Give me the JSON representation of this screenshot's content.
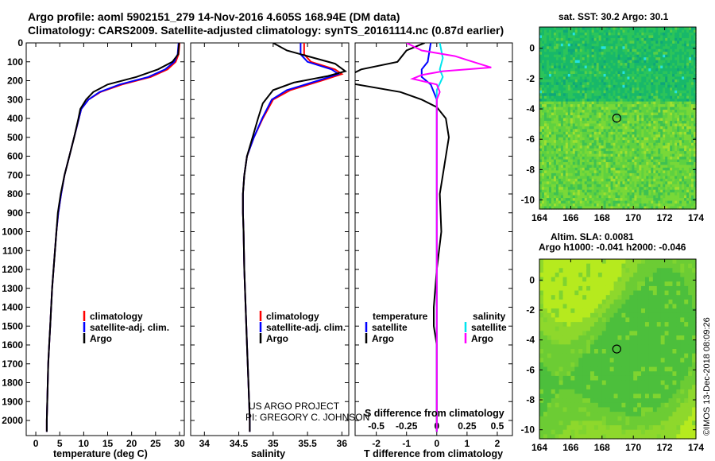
{
  "header": {
    "line1": "Argo profile: aoml 5902151_279 14-Nov-2016 4.605S 168.94E (DM data)",
    "line2": "Climatology: CARS2009. Satellite-adjusted climatology: synTS_20161114.nc (0.87d earlier)"
  },
  "colors": {
    "climatology": "#ff0000",
    "satellite": "#0000ff",
    "argo": "#000000",
    "sal_satellite": "#00e5ee",
    "sal_argo": "#ff00ff"
  },
  "chart_data": [
    {
      "type": "line",
      "id": "temperature",
      "xlabel": "temperature (deg C)",
      "xlim": [
        -2,
        31
      ],
      "ylim": [
        2080,
        0
      ],
      "xticks": [
        0,
        5,
        10,
        15,
        20,
        25,
        30
      ],
      "yticks": [
        0,
        100,
        200,
        300,
        400,
        500,
        600,
        700,
        800,
        900,
        1000,
        1100,
        1200,
        1300,
        1400,
        1500,
        1600,
        1700,
        1800,
        1900,
        2000
      ],
      "legend": [
        "climatology",
        "satellite-adj. clim.",
        "Argo"
      ],
      "series": [
        {
          "name": "climatology",
          "color": "#ff0000",
          "points": [
            [
              30.0,
              0
            ],
            [
              29.8,
              60
            ],
            [
              29.2,
              100
            ],
            [
              27.5,
              140
            ],
            [
              24.0,
              180
            ],
            [
              18.0,
              220
            ],
            [
              13.5,
              260
            ],
            [
              11.0,
              300
            ],
            [
              9.5,
              350
            ],
            [
              9.0,
              400
            ],
            [
              8.0,
              500
            ],
            [
              7.0,
              600
            ],
            [
              6.0,
              700
            ],
            [
              5.3,
              800
            ],
            [
              4.7,
              900
            ],
            [
              4.3,
              1000
            ],
            [
              4.0,
              1100
            ],
            [
              3.7,
              1200
            ],
            [
              3.4,
              1300
            ],
            [
              3.2,
              1400
            ],
            [
              3.0,
              1500
            ],
            [
              2.8,
              1600
            ],
            [
              2.6,
              1700
            ],
            [
              2.5,
              1800
            ],
            [
              2.4,
              1900
            ],
            [
              2.3,
              2000
            ],
            [
              2.3,
              2060
            ]
          ]
        },
        {
          "name": "satellite-adj. clim.",
          "color": "#0000ff",
          "points": [
            [
              29.8,
              0
            ],
            [
              29.6,
              60
            ],
            [
              28.9,
              100
            ],
            [
              27.0,
              140
            ],
            [
              23.5,
              180
            ],
            [
              17.5,
              220
            ],
            [
              13.3,
              260
            ],
            [
              11.0,
              300
            ],
            [
              9.5,
              350
            ],
            [
              9.0,
              400
            ],
            [
              8.0,
              500
            ],
            [
              7.0,
              600
            ],
            [
              6.0,
              700
            ],
            [
              5.3,
              800
            ],
            [
              4.7,
              900
            ],
            [
              4.3,
              1000
            ],
            [
              4.0,
              1100
            ],
            [
              3.7,
              1200
            ],
            [
              3.4,
              1300
            ],
            [
              3.2,
              1400
            ],
            [
              3.0,
              1500
            ],
            [
              2.8,
              1600
            ],
            [
              2.6,
              1700
            ],
            [
              2.5,
              1800
            ],
            [
              2.4,
              1900
            ],
            [
              2.3,
              2000
            ],
            [
              2.3,
              2060
            ]
          ]
        },
        {
          "name": "Argo",
          "color": "#000000",
          "points": [
            [
              29.9,
              0
            ],
            [
              29.7,
              60
            ],
            [
              28.5,
              100
            ],
            [
              25.5,
              140
            ],
            [
              21.0,
              180
            ],
            [
              15.0,
              220
            ],
            [
              12.0,
              260
            ],
            [
              10.5,
              300
            ],
            [
              9.3,
              350
            ],
            [
              8.9,
              400
            ],
            [
              8.0,
              500
            ],
            [
              7.0,
              600
            ],
            [
              6.0,
              700
            ],
            [
              5.2,
              800
            ],
            [
              4.6,
              900
            ],
            [
              4.3,
              1000
            ],
            [
              4.0,
              1100
            ],
            [
              3.7,
              1200
            ],
            [
              3.4,
              1300
            ],
            [
              3.2,
              1400
            ],
            [
              3.0,
              1500
            ],
            [
              2.8,
              1600
            ],
            [
              2.6,
              1700
            ],
            [
              2.5,
              1800
            ],
            [
              2.4,
              1900
            ],
            [
              2.3,
              2000
            ],
            [
              2.3,
              2060
            ]
          ]
        }
      ]
    },
    {
      "type": "line",
      "id": "salinity",
      "xlabel": "salinity",
      "xlim": [
        33.8,
        36.1
      ],
      "ylim": [
        2080,
        0
      ],
      "xticks": [
        34,
        34.5,
        35,
        35.5,
        36
      ],
      "xticklabels": [
        "34",
        "34.5",
        "35",
        "35.5",
        "36"
      ],
      "legend": [
        "climatology",
        "satellite-adj. clim.",
        "Argo"
      ],
      "notes": [
        "US ARGO PROJECT",
        "PI: GREGORY C. JOHNSON"
      ],
      "series": [
        {
          "name": "climatology",
          "color": "#ff0000",
          "points": [
            [
              35.45,
              0
            ],
            [
              35.45,
              60
            ],
            [
              35.55,
              100
            ],
            [
              35.9,
              140
            ],
            [
              36.0,
              165
            ],
            [
              35.7,
              200
            ],
            [
              35.25,
              250
            ],
            [
              35.0,
              300
            ],
            [
              34.85,
              400
            ],
            [
              34.72,
              500
            ],
            [
              34.62,
              600
            ],
            [
              34.58,
              700
            ],
            [
              34.56,
              800
            ],
            [
              34.56,
              900
            ],
            [
              34.57,
              1000
            ],
            [
              34.58,
              1200
            ],
            [
              34.6,
              1400
            ],
            [
              34.62,
              1600
            ],
            [
              34.64,
              1800
            ],
            [
              34.66,
              2000
            ],
            [
              34.66,
              2060
            ]
          ]
        },
        {
          "name": "satellite-adj. clim.",
          "color": "#0000ff",
          "points": [
            [
              35.4,
              0
            ],
            [
              35.4,
              60
            ],
            [
              35.5,
              100
            ],
            [
              35.85,
              140
            ],
            [
              35.95,
              165
            ],
            [
              35.65,
              200
            ],
            [
              35.2,
              250
            ],
            [
              34.98,
              300
            ],
            [
              34.84,
              400
            ],
            [
              34.72,
              500
            ],
            [
              34.62,
              600
            ],
            [
              34.58,
              700
            ],
            [
              34.56,
              800
            ],
            [
              34.56,
              900
            ],
            [
              34.57,
              1000
            ],
            [
              34.58,
              1200
            ],
            [
              34.6,
              1400
            ],
            [
              34.62,
              1600
            ],
            [
              34.64,
              1800
            ],
            [
              34.66,
              2000
            ],
            [
              34.66,
              2060
            ]
          ]
        },
        {
          "name": "Argo",
          "color": "#000000",
          "points": [
            [
              35.0,
              0
            ],
            [
              35.2,
              40
            ],
            [
              35.6,
              80
            ],
            [
              35.9,
              110
            ],
            [
              36.05,
              150
            ],
            [
              35.8,
              175
            ],
            [
              35.3,
              210
            ],
            [
              35.0,
              250
            ],
            [
              34.85,
              320
            ],
            [
              34.78,
              400
            ],
            [
              34.7,
              500
            ],
            [
              34.62,
              600
            ],
            [
              34.58,
              700
            ],
            [
              34.56,
              800
            ],
            [
              34.56,
              900
            ],
            [
              34.57,
              1000
            ],
            [
              34.58,
              1200
            ],
            [
              34.6,
              1400
            ],
            [
              34.62,
              1600
            ],
            [
              34.64,
              1800
            ],
            [
              34.66,
              2000
            ],
            [
              34.66,
              2060
            ]
          ]
        }
      ]
    },
    {
      "type": "line",
      "id": "difference",
      "xlabel": "T difference from climatology",
      "xlabel_top": "S difference from climatology",
      "xlim": [
        -2.7,
        2.5
      ],
      "ylim": [
        2080,
        0
      ],
      "xticks": [
        -2,
        -1,
        0,
        1,
        2
      ],
      "xticks_s": [
        -0.5,
        -0.25,
        0,
        0.25,
        0.5
      ],
      "xticklabels_s": [
        "-0.5",
        "-0.25",
        "0",
        "0.25",
        "0.5"
      ],
      "legend_left": {
        "title": "temperature",
        "items": [
          "satellite",
          "Argo"
        ]
      },
      "legend_right": {
        "title": "salinity",
        "items": [
          "satellite",
          "Argo"
        ]
      },
      "series": [
        {
          "name": "temperature satellite",
          "color": "#0000ff",
          "points": [
            [
              -0.2,
              0
            ],
            [
              -0.3,
              100
            ],
            [
              -0.5,
              140
            ],
            [
              -0.5,
              180
            ],
            [
              -0.2,
              220
            ],
            [
              0,
              300
            ],
            [
              0,
              2060
            ]
          ]
        },
        {
          "name": "temperature Argo",
          "color": "#000000",
          "points": [
            [
              -0.4,
              0
            ],
            [
              -1.0,
              40
            ],
            [
              -1.3,
              100
            ],
            [
              -2.5,
              140
            ],
            [
              -3.0,
              180
            ],
            [
              -3.0,
              210
            ],
            [
              -1.2,
              260
            ],
            [
              -0.5,
              300
            ],
            [
              0,
              340
            ],
            [
              0.3,
              400
            ],
            [
              0.4,
              500
            ],
            [
              0.3,
              600
            ],
            [
              0.2,
              700
            ],
            [
              0.1,
              800
            ],
            [
              0.15,
              1000
            ],
            [
              0,
              1200
            ],
            [
              -0.1,
              1400
            ],
            [
              -0.1,
              1500
            ],
            [
              0,
              1600
            ],
            [
              0,
              2060
            ]
          ]
        },
        {
          "name": "salinity satellite",
          "color": "#00e5ee",
          "points": [
            [
              0.1,
              0
            ],
            [
              0.2,
              80
            ],
            [
              0.1,
              140
            ],
            [
              0.2,
              180
            ],
            [
              0,
              250
            ],
            [
              0,
              2060
            ]
          ]
        },
        {
          "name": "salinity Argo",
          "color": "#ff00ff",
          "points": [
            [
              -1.0,
              0
            ],
            [
              -0.5,
              40
            ],
            [
              0.6,
              70
            ],
            [
              1.0,
              90
            ],
            [
              1.8,
              130
            ],
            [
              0.2,
              150
            ],
            [
              -0.5,
              170
            ],
            [
              -0.8,
              190
            ],
            [
              0,
              220
            ],
            [
              0.1,
              260
            ],
            [
              0,
              300
            ],
            [
              0,
              2060
            ]
          ]
        }
      ]
    }
  ],
  "maps": [
    {
      "title": "sat. SST: 30.2 Argo: 30.1",
      "yticks": [
        0,
        -2,
        -4,
        -6,
        -8,
        -10
      ],
      "xticks": [
        164,
        166,
        168,
        170,
        172,
        174
      ]
    },
    {
      "title_line1": "Altim. SLA: 0.0081",
      "title_line2": "Argo h1000: -0.041 h2000: -0.046",
      "yticks": [
        0,
        -2,
        -4,
        -6,
        -8,
        -10
      ],
      "xticks": [
        164,
        166,
        168,
        170,
        172,
        174
      ]
    }
  ],
  "footer": {
    "credit": "©IMOS 13-Dec-2018 08:09:26"
  }
}
